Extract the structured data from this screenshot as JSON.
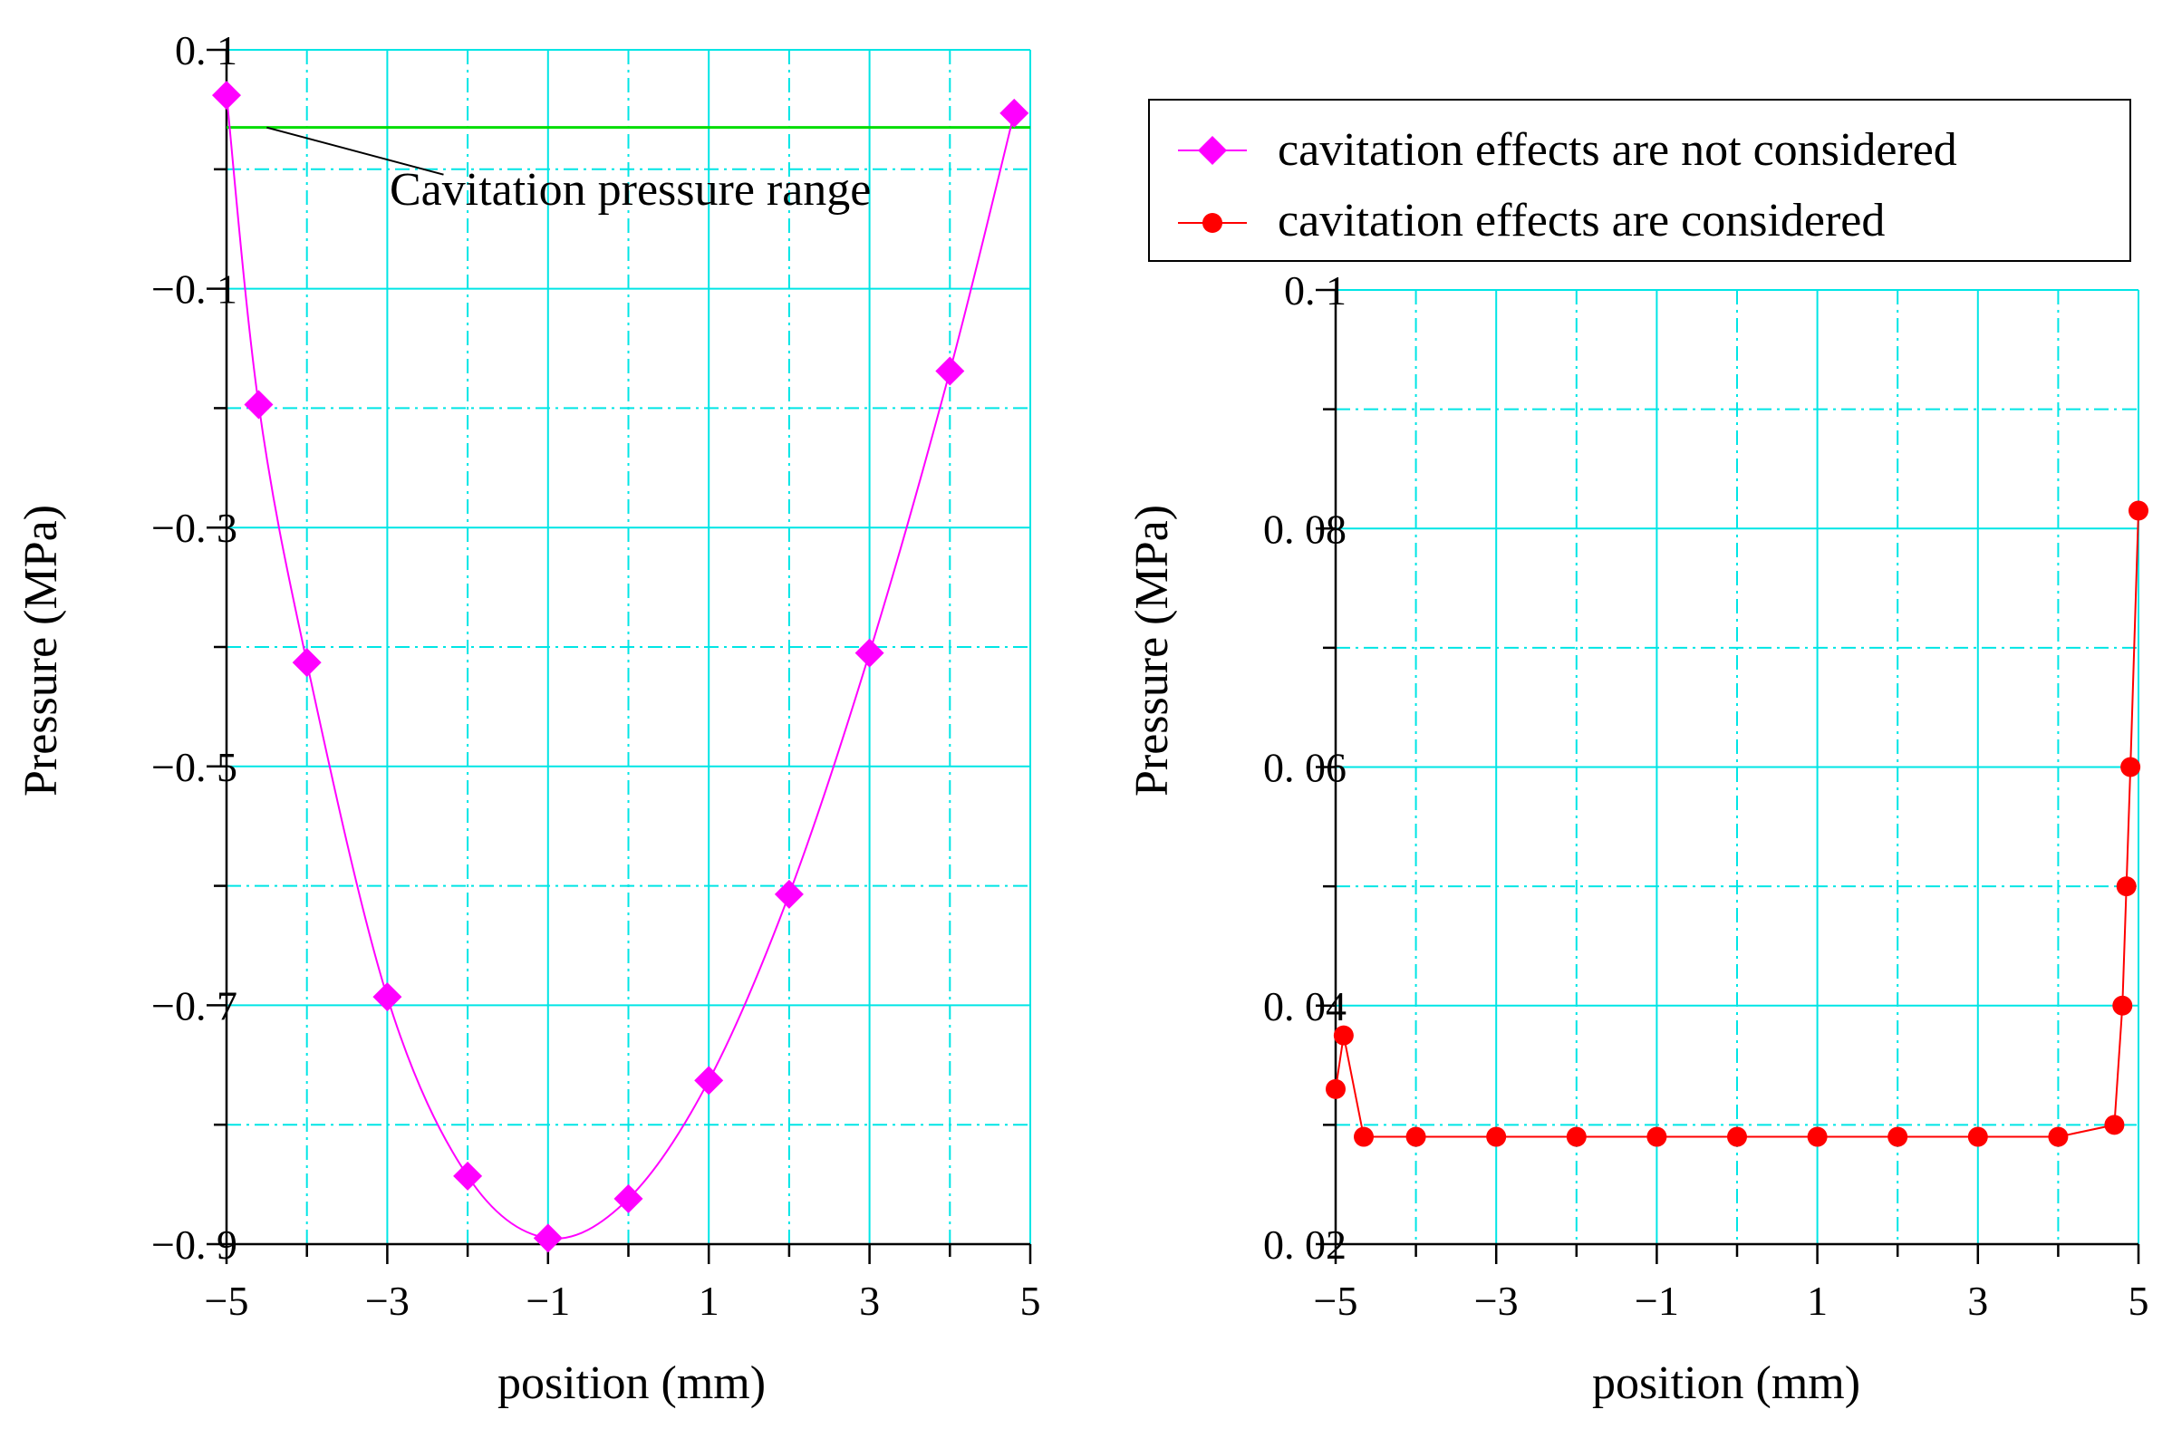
{
  "chart_data": [
    {
      "type": "line",
      "xlabel": "position (mm)",
      "ylabel": "Pressure (MPa)",
      "xlim": [
        -5,
        5
      ],
      "ylim": [
        -0.9,
        0.1
      ],
      "xticks": [
        -5,
        -3,
        -1,
        1,
        3,
        5
      ],
      "xtick_labels": [
        "−5",
        "−3",
        "−1",
        "1",
        "3",
        "5"
      ],
      "yticks": [
        0.1,
        -0.1,
        -0.3,
        -0.5,
        -0.7,
        -0.9
      ],
      "ytick_labels": [
        "0. 1",
        "−0. 1",
        "−0. 3",
        "−0. 5",
        "−0. 7",
        "−0. 9"
      ],
      "grid": true,
      "series": [
        {
          "name": "cavitation effects are not considered",
          "color": "#ff00ff",
          "marker": "diamond",
          "x": [
            -5,
            -4.6,
            -4,
            -3,
            -2,
            -1,
            0,
            1,
            2,
            3,
            4,
            4.8
          ],
          "y": [
            0.062,
            -0.197,
            -0.413,
            -0.693,
            -0.843,
            -0.895,
            -0.862,
            -0.763,
            -0.607,
            -0.405,
            -0.169,
            0.047
          ]
        }
      ],
      "annotation": {
        "text": "Cavitation pressure range",
        "line_y": 0.035,
        "line_color": "#00dd00"
      }
    },
    {
      "type": "line",
      "xlabel": "position (mm)",
      "ylabel": "Pressure (MPa)",
      "xlim": [
        -5,
        5
      ],
      "ylim": [
        0.02,
        0.1
      ],
      "xticks": [
        -5,
        -3,
        -1,
        1,
        3,
        5
      ],
      "xtick_labels": [
        "−5",
        "−3",
        "−1",
        "1",
        "3",
        "5"
      ],
      "yticks": [
        0.1,
        0.08,
        0.06,
        0.04,
        0.02
      ],
      "ytick_labels": [
        "0. 1",
        "0. 08",
        "0. 06",
        "0. 04",
        "0. 02"
      ],
      "grid": true,
      "series": [
        {
          "name": "cavitation effects are considered",
          "color": "#ff0000",
          "marker": "circle",
          "x": [
            -5,
            -4.9,
            -4.65,
            -4,
            -3,
            -2,
            -1,
            0,
            1,
            2,
            3,
            4,
            4.7,
            4.8,
            4.85,
            4.9,
            5
          ],
          "y": [
            0.033,
            0.0375,
            0.029,
            0.029,
            0.029,
            0.029,
            0.029,
            0.029,
            0.029,
            0.029,
            0.029,
            0.029,
            0.03,
            0.04,
            0.05,
            0.06,
            0.0815
          ]
        }
      ]
    }
  ],
  "legend": {
    "items": [
      {
        "label": "cavitation effects are not considered",
        "marker": "diamond",
        "color": "#ff00ff"
      },
      {
        "label": "cavitation effects are considered",
        "marker": "circle",
        "color": "#ff0000"
      }
    ]
  }
}
